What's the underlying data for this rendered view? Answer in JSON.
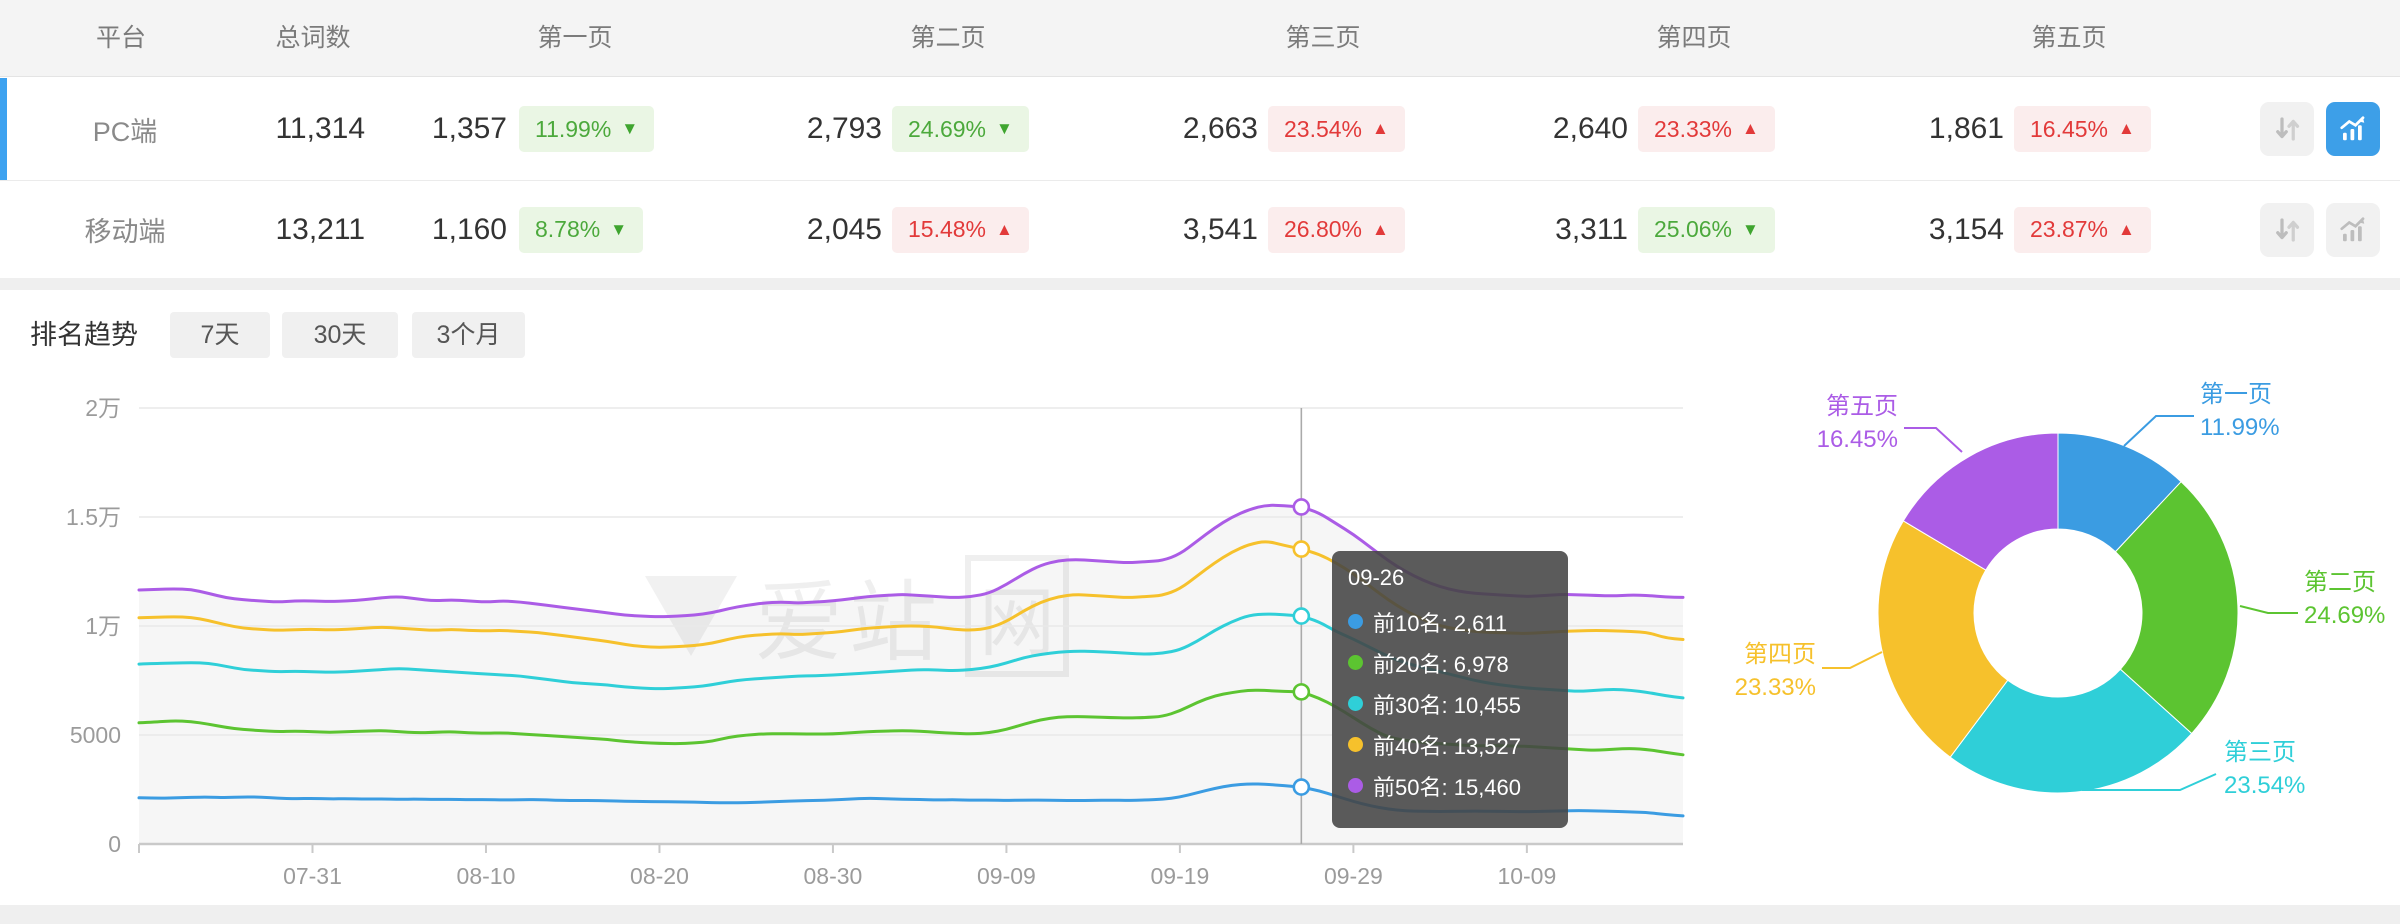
{
  "colors": {
    "accent": "#3d9fe8",
    "selected_row_bar": "#3da2f0",
    "up_red": "#e23a3a",
    "down_green": "#4ca93c",
    "series_blue": "#3b9ce2",
    "series_green": "#5cc431",
    "series_cyan": "#2fcfd8",
    "series_yellow": "#f6c12c",
    "series_purple": "#ab5ce6"
  },
  "table": {
    "columns": [
      "平台",
      "总词数",
      "第一页",
      "第二页",
      "第三页",
      "第四页",
      "第五页"
    ],
    "rows": [
      {
        "platform": "PC端",
        "total": "11,314",
        "selected": true,
        "chart_active": true,
        "pages": [
          {
            "value": "1,357",
            "pct": "11.99%",
            "arrow": "▼",
            "trend": "down"
          },
          {
            "value": "2,793",
            "pct": "24.69%",
            "arrow": "▼",
            "trend": "down"
          },
          {
            "value": "2,663",
            "pct": "23.54%",
            "arrow": "▲",
            "trend": "up"
          },
          {
            "value": "2,640",
            "pct": "23.33%",
            "arrow": "▲",
            "trend": "up"
          },
          {
            "value": "1,861",
            "pct": "16.45%",
            "arrow": "▲",
            "trend": "up"
          }
        ]
      },
      {
        "platform": "移动端",
        "total": "13,211",
        "selected": false,
        "chart_active": false,
        "pages": [
          {
            "value": "1,160",
            "pct": "8.78%",
            "arrow": "▼",
            "trend": "down"
          },
          {
            "value": "2,045",
            "pct": "15.48%",
            "arrow": "▲",
            "trend": "up"
          },
          {
            "value": "3,541",
            "pct": "26.80%",
            "arrow": "▲",
            "trend": "up"
          },
          {
            "value": "3,311",
            "pct": "25.06%",
            "arrow": "▼",
            "trend": "down"
          },
          {
            "value": "3,154",
            "pct": "23.87%",
            "arrow": "▲",
            "trend": "up"
          }
        ]
      }
    ]
  },
  "trend": {
    "title": "排名趋势",
    "tabs": [
      {
        "label": "7天",
        "active": false
      },
      {
        "label": "30天",
        "active": false
      },
      {
        "label": "3个月",
        "active": true
      }
    ]
  },
  "watermark": {
    "text": "爱站",
    "boxed": "网"
  },
  "tooltip": {
    "title": "09-26",
    "rows": [
      {
        "label": "前10名",
        "value": "2,611"
      },
      {
        "label": "前20名",
        "value": "6,978"
      },
      {
        "label": "前30名",
        "value": "10,455"
      },
      {
        "label": "前40名",
        "value": "13,527"
      },
      {
        "label": "前50名",
        "value": "15,460"
      }
    ]
  },
  "chart_data": [
    {
      "type": "line",
      "title": "排名趋势 3个月",
      "x_start": "07-21",
      "x_end": "10-18",
      "x_tick_labels": [
        "07-31",
        "08-10",
        "08-20",
        "08-30",
        "09-09",
        "09-19",
        "09-29",
        "10-09"
      ],
      "x_tick_indices": [
        10,
        20,
        30,
        40,
        50,
        60,
        70,
        80
      ],
      "y_ticks": [
        {
          "v": 0,
          "label": "0"
        },
        {
          "v": 5000,
          "label": "5000"
        },
        {
          "v": 10000,
          "label": "1万"
        },
        {
          "v": 15000,
          "label": "1.5万"
        },
        {
          "v": 20000,
          "label": "2万"
        }
      ],
      "ylim": [
        0,
        20000
      ],
      "grid": true,
      "highlight_index": 67,
      "highlight_date": "09-26",
      "series": [
        {
          "name": "前10名",
          "color": "#3b9ce2",
          "values": [
            2120,
            2100,
            2110,
            2140,
            2150,
            2130,
            2160,
            2150,
            2100,
            2080,
            2090,
            2070,
            2080,
            2060,
            2070,
            2050,
            2060,
            2040,
            2050,
            2030,
            2040,
            2020,
            2030,
            2040,
            2010,
            1990,
            2000,
            1980,
            1960,
            1950,
            1940,
            1930,
            1920,
            1900,
            1890,
            1900,
            1920,
            1950,
            1980,
            2000,
            2020,
            2060,
            2100,
            2080,
            2050,
            2040,
            2020,
            2030,
            2010,
            2020,
            2000,
            2010,
            2020,
            2000,
            1990,
            2000,
            2010,
            2000,
            2020,
            2050,
            2150,
            2350,
            2550,
            2700,
            2760,
            2740,
            2680,
            2611,
            2450,
            2200,
            1950,
            1750,
            1600,
            1520,
            1500,
            1490,
            1500,
            1510,
            1500,
            1490,
            1480,
            1500,
            1520,
            1530,
            1520,
            1500,
            1470,
            1440,
            1350,
            1290
          ]
        },
        {
          "name": "前20名",
          "color": "#5cc431",
          "values": [
            5560,
            5600,
            5650,
            5620,
            5500,
            5350,
            5250,
            5200,
            5150,
            5180,
            5150,
            5120,
            5150,
            5180,
            5200,
            5150,
            5100,
            5120,
            5150,
            5100,
            5080,
            5100,
            5050,
            5000,
            4950,
            4900,
            4850,
            4800,
            4700,
            4650,
            4620,
            4600,
            4630,
            4700,
            4900,
            5000,
            5050,
            5060,
            5050,
            5040,
            5050,
            5100,
            5150,
            5180,
            5200,
            5180,
            5120,
            5080,
            5050,
            5100,
            5250,
            5500,
            5700,
            5820,
            5850,
            5830,
            5800,
            5780,
            5800,
            5850,
            6100,
            6500,
            6800,
            6950,
            7060,
            7040,
            7000,
            6978,
            6700,
            6300,
            5800,
            5300,
            4900,
            4750,
            4650,
            4600,
            4550,
            4500,
            4520,
            4500,
            4480,
            4430,
            4380,
            4330,
            4300,
            4350,
            4390,
            4330,
            4200,
            4090
          ]
        },
        {
          "name": "前30名",
          "color": "#2fcfd8",
          "values": [
            8250,
            8280,
            8300,
            8320,
            8300,
            8150,
            8000,
            7950,
            7900,
            7920,
            7900,
            7880,
            7900,
            7950,
            8000,
            8050,
            8000,
            7950,
            7900,
            7850,
            7800,
            7750,
            7700,
            7600,
            7500,
            7400,
            7350,
            7300,
            7200,
            7150,
            7120,
            7150,
            7200,
            7300,
            7450,
            7550,
            7600,
            7650,
            7700,
            7720,
            7750,
            7800,
            7850,
            7900,
            7950,
            8000,
            7980,
            7950,
            8000,
            8100,
            8300,
            8550,
            8700,
            8800,
            8850,
            8830,
            8800,
            8750,
            8700,
            8750,
            8900,
            9300,
            9800,
            10200,
            10500,
            10560,
            10520,
            10455,
            10200,
            9750,
            9400,
            9000,
            8600,
            8300,
            8100,
            7900,
            7700,
            7500,
            7350,
            7250,
            7150,
            7100,
            7050,
            7000,
            7050,
            7100,
            7050,
            6950,
            6800,
            6700
          ]
        },
        {
          "name": "前40名",
          "color": "#f6c12c",
          "values": [
            10380,
            10400,
            10420,
            10400,
            10250,
            10050,
            9900,
            9850,
            9800,
            9830,
            9850,
            9820,
            9850,
            9900,
            9950,
            9900,
            9850,
            9800,
            9850,
            9800,
            9780,
            9800,
            9750,
            9700,
            9600,
            9500,
            9400,
            9300,
            9150,
            9050,
            9020,
            9050,
            9100,
            9200,
            9400,
            9550,
            9600,
            9650,
            9600,
            9650,
            9700,
            9800,
            9900,
            9950,
            10000,
            10000,
            9950,
            9850,
            9800,
            9900,
            10200,
            10700,
            11100,
            11350,
            11450,
            11400,
            11350,
            11300,
            11350,
            11400,
            11700,
            12300,
            12900,
            13400,
            13750,
            13900,
            13700,
            13527,
            13300,
            12900,
            12400,
            11800,
            11200,
            10700,
            10300,
            10000,
            9850,
            9750,
            9700,
            9680,
            9650,
            9700,
            9750,
            9780,
            9800,
            9780,
            9750,
            9700,
            9450,
            9380
          ]
        },
        {
          "name": "前50名",
          "color": "#ab5ce6",
          "values": [
            11650,
            11680,
            11700,
            11680,
            11500,
            11300,
            11200,
            11150,
            11100,
            11150,
            11150,
            11120,
            11150,
            11200,
            11300,
            11350,
            11250,
            11150,
            11200,
            11150,
            11100,
            11150,
            11100,
            11000,
            10900,
            10800,
            10700,
            10600,
            10500,
            10450,
            10420,
            10450,
            10500,
            10600,
            10800,
            10950,
            11050,
            11100,
            11050,
            11100,
            11150,
            11250,
            11350,
            11400,
            11450,
            11400,
            11350,
            11300,
            11350,
            11500,
            11900,
            12400,
            12800,
            13000,
            13050,
            13000,
            12950,
            12900,
            12950,
            13000,
            13300,
            13900,
            14500,
            15000,
            15350,
            15550,
            15520,
            15460,
            15200,
            14700,
            14200,
            13600,
            13000,
            12500,
            12100,
            11800,
            11600,
            11500,
            11450,
            11400,
            11350,
            11400,
            11450,
            11430,
            11400,
            11380,
            11420,
            11400,
            11330,
            11310
          ]
        }
      ]
    },
    {
      "type": "pie",
      "donut": true,
      "labels": [
        "第一页",
        "第二页",
        "第三页",
        "第四页",
        "第五页"
      ],
      "values": [
        11.99,
        24.69,
        23.54,
        23.33,
        16.45
      ],
      "pct_labels": [
        "11.99%",
        "24.69%",
        "23.54%",
        "23.33%",
        "16.45%"
      ],
      "colors": [
        "#3b9ce2",
        "#5cc431",
        "#2fcfd8",
        "#f6c12c",
        "#ab5ce6"
      ],
      "start_angle": "top",
      "direction": "clockwise"
    }
  ]
}
